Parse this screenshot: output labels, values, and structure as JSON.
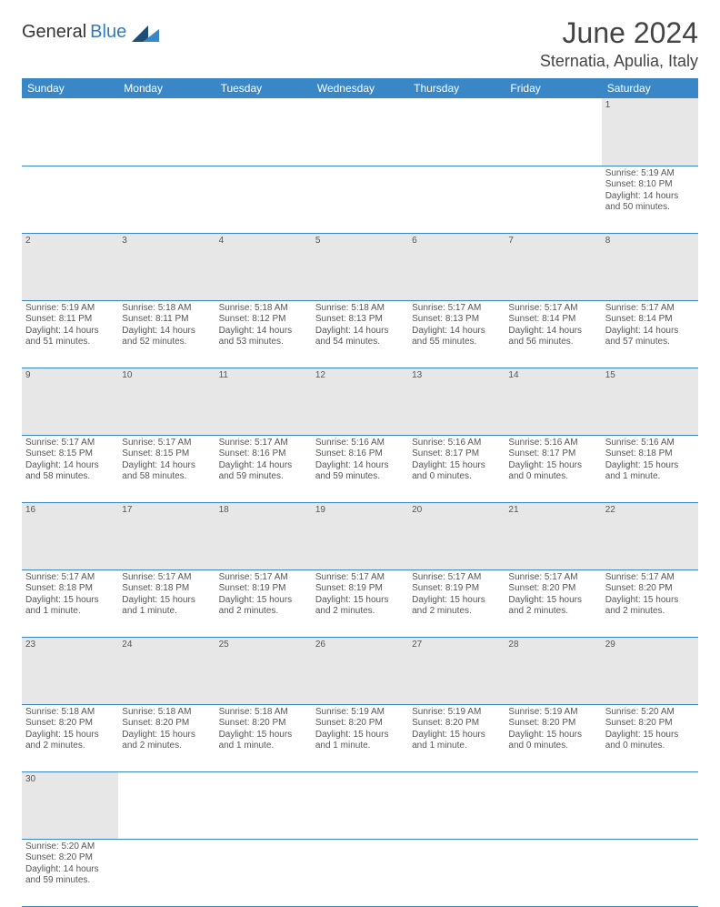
{
  "brand": {
    "name_a": "General",
    "name_b": "Blue"
  },
  "title": "June 2024",
  "location": "Sternatia, Apulia, Italy",
  "colors": {
    "header_bg": "#3a87c8",
    "header_text": "#ffffff",
    "daynum_bg": "#e7e7e7",
    "border": "#3a87c8",
    "text": "#555555",
    "brand_blue": "#2f7bbf"
  },
  "day_headers": [
    "Sunday",
    "Monday",
    "Tuesday",
    "Wednesday",
    "Thursday",
    "Friday",
    "Saturday"
  ],
  "weeks": [
    {
      "nums": [
        "",
        "",
        "",
        "",
        "",
        "",
        "1"
      ],
      "cells": [
        null,
        null,
        null,
        null,
        null,
        null,
        {
          "sunrise": "Sunrise: 5:19 AM",
          "sunset": "Sunset: 8:10 PM",
          "day1": "Daylight: 14 hours",
          "day2": "and 50 minutes."
        }
      ]
    },
    {
      "nums": [
        "2",
        "3",
        "4",
        "5",
        "6",
        "7",
        "8"
      ],
      "cells": [
        {
          "sunrise": "Sunrise: 5:19 AM",
          "sunset": "Sunset: 8:11 PM",
          "day1": "Daylight: 14 hours",
          "day2": "and 51 minutes."
        },
        {
          "sunrise": "Sunrise: 5:18 AM",
          "sunset": "Sunset: 8:11 PM",
          "day1": "Daylight: 14 hours",
          "day2": "and 52 minutes."
        },
        {
          "sunrise": "Sunrise: 5:18 AM",
          "sunset": "Sunset: 8:12 PM",
          "day1": "Daylight: 14 hours",
          "day2": "and 53 minutes."
        },
        {
          "sunrise": "Sunrise: 5:18 AM",
          "sunset": "Sunset: 8:13 PM",
          "day1": "Daylight: 14 hours",
          "day2": "and 54 minutes."
        },
        {
          "sunrise": "Sunrise: 5:17 AM",
          "sunset": "Sunset: 8:13 PM",
          "day1": "Daylight: 14 hours",
          "day2": "and 55 minutes."
        },
        {
          "sunrise": "Sunrise: 5:17 AM",
          "sunset": "Sunset: 8:14 PM",
          "day1": "Daylight: 14 hours",
          "day2": "and 56 minutes."
        },
        {
          "sunrise": "Sunrise: 5:17 AM",
          "sunset": "Sunset: 8:14 PM",
          "day1": "Daylight: 14 hours",
          "day2": "and 57 minutes."
        }
      ]
    },
    {
      "nums": [
        "9",
        "10",
        "11",
        "12",
        "13",
        "14",
        "15"
      ],
      "cells": [
        {
          "sunrise": "Sunrise: 5:17 AM",
          "sunset": "Sunset: 8:15 PM",
          "day1": "Daylight: 14 hours",
          "day2": "and 58 minutes."
        },
        {
          "sunrise": "Sunrise: 5:17 AM",
          "sunset": "Sunset: 8:15 PM",
          "day1": "Daylight: 14 hours",
          "day2": "and 58 minutes."
        },
        {
          "sunrise": "Sunrise: 5:17 AM",
          "sunset": "Sunset: 8:16 PM",
          "day1": "Daylight: 14 hours",
          "day2": "and 59 minutes."
        },
        {
          "sunrise": "Sunrise: 5:16 AM",
          "sunset": "Sunset: 8:16 PM",
          "day1": "Daylight: 14 hours",
          "day2": "and 59 minutes."
        },
        {
          "sunrise": "Sunrise: 5:16 AM",
          "sunset": "Sunset: 8:17 PM",
          "day1": "Daylight: 15 hours",
          "day2": "and 0 minutes."
        },
        {
          "sunrise": "Sunrise: 5:16 AM",
          "sunset": "Sunset: 8:17 PM",
          "day1": "Daylight: 15 hours",
          "day2": "and 0 minutes."
        },
        {
          "sunrise": "Sunrise: 5:16 AM",
          "sunset": "Sunset: 8:18 PM",
          "day1": "Daylight: 15 hours",
          "day2": "and 1 minute."
        }
      ]
    },
    {
      "nums": [
        "16",
        "17",
        "18",
        "19",
        "20",
        "21",
        "22"
      ],
      "cells": [
        {
          "sunrise": "Sunrise: 5:17 AM",
          "sunset": "Sunset: 8:18 PM",
          "day1": "Daylight: 15 hours",
          "day2": "and 1 minute."
        },
        {
          "sunrise": "Sunrise: 5:17 AM",
          "sunset": "Sunset: 8:18 PM",
          "day1": "Daylight: 15 hours",
          "day2": "and 1 minute."
        },
        {
          "sunrise": "Sunrise: 5:17 AM",
          "sunset": "Sunset: 8:19 PM",
          "day1": "Daylight: 15 hours",
          "day2": "and 2 minutes."
        },
        {
          "sunrise": "Sunrise: 5:17 AM",
          "sunset": "Sunset: 8:19 PM",
          "day1": "Daylight: 15 hours",
          "day2": "and 2 minutes."
        },
        {
          "sunrise": "Sunrise: 5:17 AM",
          "sunset": "Sunset: 8:19 PM",
          "day1": "Daylight: 15 hours",
          "day2": "and 2 minutes."
        },
        {
          "sunrise": "Sunrise: 5:17 AM",
          "sunset": "Sunset: 8:20 PM",
          "day1": "Daylight: 15 hours",
          "day2": "and 2 minutes."
        },
        {
          "sunrise": "Sunrise: 5:17 AM",
          "sunset": "Sunset: 8:20 PM",
          "day1": "Daylight: 15 hours",
          "day2": "and 2 minutes."
        }
      ]
    },
    {
      "nums": [
        "23",
        "24",
        "25",
        "26",
        "27",
        "28",
        "29"
      ],
      "cells": [
        {
          "sunrise": "Sunrise: 5:18 AM",
          "sunset": "Sunset: 8:20 PM",
          "day1": "Daylight: 15 hours",
          "day2": "and 2 minutes."
        },
        {
          "sunrise": "Sunrise: 5:18 AM",
          "sunset": "Sunset: 8:20 PM",
          "day1": "Daylight: 15 hours",
          "day2": "and 2 minutes."
        },
        {
          "sunrise": "Sunrise: 5:18 AM",
          "sunset": "Sunset: 8:20 PM",
          "day1": "Daylight: 15 hours",
          "day2": "and 1 minute."
        },
        {
          "sunrise": "Sunrise: 5:19 AM",
          "sunset": "Sunset: 8:20 PM",
          "day1": "Daylight: 15 hours",
          "day2": "and 1 minute."
        },
        {
          "sunrise": "Sunrise: 5:19 AM",
          "sunset": "Sunset: 8:20 PM",
          "day1": "Daylight: 15 hours",
          "day2": "and 1 minute."
        },
        {
          "sunrise": "Sunrise: 5:19 AM",
          "sunset": "Sunset: 8:20 PM",
          "day1": "Daylight: 15 hours",
          "day2": "and 0 minutes."
        },
        {
          "sunrise": "Sunrise: 5:20 AM",
          "sunset": "Sunset: 8:20 PM",
          "day1": "Daylight: 15 hours",
          "day2": "and 0 minutes."
        }
      ]
    },
    {
      "nums": [
        "30",
        "",
        "",
        "",
        "",
        "",
        ""
      ],
      "cells": [
        {
          "sunrise": "Sunrise: 5:20 AM",
          "sunset": "Sunset: 8:20 PM",
          "day1": "Daylight: 14 hours",
          "day2": "and 59 minutes."
        },
        null,
        null,
        null,
        null,
        null,
        null
      ]
    }
  ]
}
